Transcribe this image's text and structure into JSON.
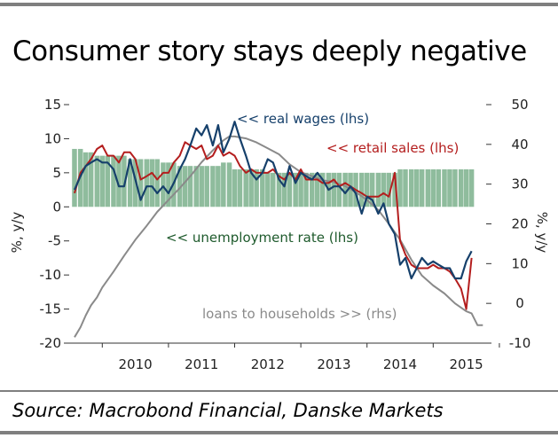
{
  "title": "Consumer story stays deeply negative",
  "source": "Source: Macrobond Financial, Danske Markets",
  "colors": {
    "real_wages": "#16406b",
    "retail_sales": "#b41e1e",
    "unemployment": "#8fbc9d",
    "unemployment_label": "#1e5a2c",
    "loans": "#8a8a8a",
    "rule": "#7f7f7f"
  },
  "chart_data": {
    "type": "line",
    "title": "Consumer story stays deeply negative",
    "left_axis": {
      "label": "%, y/y",
      "ylim": [
        -20,
        15
      ],
      "ticks": [
        15,
        10,
        5,
        0,
        -5,
        -10,
        -15,
        -20
      ],
      "tick_labels": [
        "15",
        "10",
        "5",
        "0",
        "-5",
        "-10",
        "-15",
        "-20"
      ]
    },
    "right_axis": {
      "label": "%, y/y",
      "ylim": [
        -10,
        50
      ],
      "ticks": [
        50,
        40,
        30,
        20,
        10,
        0,
        -10
      ],
      "tick_labels": [
        "50",
        "40",
        "30",
        "20",
        "10",
        "0",
        "-10"
      ]
    },
    "x_axis": {
      "range": [
        2009.5,
        2015.8
      ],
      "tick_labels": [
        "2010",
        "2011",
        "2012",
        "2013",
        "2014",
        "2015"
      ]
    },
    "grid": false,
    "series": [
      {
        "name": "<< real wages (lhs)",
        "axis": "left",
        "kind": "line",
        "points": [
          [
            2009.58,
            2.5
          ],
          [
            2009.67,
            4.5
          ],
          [
            2009.75,
            6.0
          ],
          [
            2009.83,
            6.5
          ],
          [
            2009.92,
            7.0
          ],
          [
            2010.0,
            6.5
          ],
          [
            2010.08,
            6.5
          ],
          [
            2010.17,
            5.5
          ],
          [
            2010.25,
            3.0
          ],
          [
            2010.33,
            3.0
          ],
          [
            2010.42,
            7.0
          ],
          [
            2010.5,
            4.0
          ],
          [
            2010.58,
            1.0
          ],
          [
            2010.67,
            3.0
          ],
          [
            2010.75,
            3.0
          ],
          [
            2010.83,
            2.0
          ],
          [
            2010.92,
            3.0
          ],
          [
            2011.0,
            2.0
          ],
          [
            2011.08,
            3.5
          ],
          [
            2011.17,
            5.5
          ],
          [
            2011.25,
            7.0
          ],
          [
            2011.33,
            9.0
          ],
          [
            2011.42,
            11.5
          ],
          [
            2011.5,
            10.5
          ],
          [
            2011.58,
            12.0
          ],
          [
            2011.67,
            9.0
          ],
          [
            2011.75,
            12.0
          ],
          [
            2011.83,
            8.0
          ],
          [
            2011.92,
            10.0
          ],
          [
            2012.0,
            12.5
          ],
          [
            2012.08,
            10.0
          ],
          [
            2012.17,
            7.5
          ],
          [
            2012.25,
            5.0
          ],
          [
            2012.33,
            4.0
          ],
          [
            2012.42,
            5.0
          ],
          [
            2012.5,
            7.0
          ],
          [
            2012.58,
            6.5
          ],
          [
            2012.67,
            4.0
          ],
          [
            2012.75,
            3.0
          ],
          [
            2012.83,
            6.0
          ],
          [
            2012.92,
            3.5
          ],
          [
            2013.0,
            5.0
          ],
          [
            2013.08,
            4.5
          ],
          [
            2013.17,
            4.0
          ],
          [
            2013.25,
            5.0
          ],
          [
            2013.33,
            4.0
          ],
          [
            2013.42,
            2.5
          ],
          [
            2013.5,
            3.0
          ],
          [
            2013.58,
            3.0
          ],
          [
            2013.67,
            2.0
          ],
          [
            2013.75,
            3.0
          ],
          [
            2013.83,
            2.0
          ],
          [
            2013.92,
            -1.0
          ],
          [
            2014.0,
            1.5
          ],
          [
            2014.08,
            1.0
          ],
          [
            2014.17,
            -1.0
          ],
          [
            2014.25,
            0.5
          ],
          [
            2014.33,
            -2.5
          ],
          [
            2014.42,
            -4.0
          ],
          [
            2014.5,
            -8.5
          ],
          [
            2014.58,
            -7.5
          ],
          [
            2014.67,
            -10.5
          ],
          [
            2014.75,
            -9.0
          ],
          [
            2014.83,
            -7.5
          ],
          [
            2014.92,
            -8.5
          ],
          [
            2015.0,
            -8.0
          ],
          [
            2015.08,
            -8.5
          ],
          [
            2015.17,
            -9.0
          ],
          [
            2015.25,
            -9.0
          ],
          [
            2015.33,
            -10.5
          ],
          [
            2015.42,
            -10.5
          ],
          [
            2015.5,
            -8.0
          ],
          [
            2015.58,
            -6.5
          ]
        ]
      },
      {
        "name": "<< retail sales (lhs)",
        "axis": "left",
        "kind": "line",
        "points": [
          [
            2009.58,
            2.0
          ],
          [
            2009.67,
            5.0
          ],
          [
            2009.75,
            6.0
          ],
          [
            2009.83,
            7.0
          ],
          [
            2009.92,
            8.5
          ],
          [
            2010.0,
            9.0
          ],
          [
            2010.08,
            7.5
          ],
          [
            2010.17,
            7.5
          ],
          [
            2010.25,
            6.5
          ],
          [
            2010.33,
            8.0
          ],
          [
            2010.42,
            8.0
          ],
          [
            2010.5,
            7.0
          ],
          [
            2010.58,
            4.0
          ],
          [
            2010.67,
            4.5
          ],
          [
            2010.75,
            5.0
          ],
          [
            2010.83,
            4.0
          ],
          [
            2010.92,
            5.0
          ],
          [
            2011.0,
            5.0
          ],
          [
            2011.08,
            6.5
          ],
          [
            2011.17,
            7.5
          ],
          [
            2011.25,
            9.5
          ],
          [
            2011.33,
            9.0
          ],
          [
            2011.42,
            8.5
          ],
          [
            2011.5,
            9.0
          ],
          [
            2011.58,
            7.0
          ],
          [
            2011.67,
            7.5
          ],
          [
            2011.75,
            9.0
          ],
          [
            2011.83,
            7.5
          ],
          [
            2011.92,
            8.0
          ],
          [
            2012.0,
            7.5
          ],
          [
            2012.08,
            6.0
          ],
          [
            2012.17,
            5.0
          ],
          [
            2012.25,
            5.5
          ],
          [
            2012.33,
            5.0
          ],
          [
            2012.42,
            5.0
          ],
          [
            2012.5,
            5.0
          ],
          [
            2012.58,
            5.5
          ],
          [
            2012.67,
            4.5
          ],
          [
            2012.75,
            4.0
          ],
          [
            2012.83,
            5.0
          ],
          [
            2012.92,
            4.0
          ],
          [
            2013.0,
            5.5
          ],
          [
            2013.08,
            4.0
          ],
          [
            2013.17,
            4.0
          ],
          [
            2013.25,
            4.0
          ],
          [
            2013.33,
            3.5
          ],
          [
            2013.42,
            3.5
          ],
          [
            2013.5,
            4.0
          ],
          [
            2013.58,
            3.0
          ],
          [
            2013.67,
            3.5
          ],
          [
            2013.75,
            3.0
          ],
          [
            2013.83,
            2.5
          ],
          [
            2013.92,
            2.0
          ],
          [
            2014.0,
            1.5
          ],
          [
            2014.08,
            1.5
          ],
          [
            2014.17,
            1.5
          ],
          [
            2014.25,
            2.0
          ],
          [
            2014.33,
            1.5
          ],
          [
            2014.42,
            5.0
          ],
          [
            2014.5,
            -5.0
          ],
          [
            2014.58,
            -7.0
          ],
          [
            2014.67,
            -8.5
          ],
          [
            2014.75,
            -9.0
          ],
          [
            2014.83,
            -9.0
          ],
          [
            2014.92,
            -9.0
          ],
          [
            2015.0,
            -8.5
          ],
          [
            2015.08,
            -9.0
          ],
          [
            2015.17,
            -9.0
          ],
          [
            2015.25,
            -9.5
          ],
          [
            2015.33,
            -10.5
          ],
          [
            2015.42,
            -12.0
          ],
          [
            2015.5,
            -15.0
          ],
          [
            2015.58,
            -7.5
          ]
        ]
      },
      {
        "name": "<< unemployment rate (lhs)",
        "axis": "left",
        "kind": "bar",
        "points": [
          [
            2009.58,
            8.5
          ],
          [
            2009.67,
            8.5
          ],
          [
            2009.75,
            8.0
          ],
          [
            2009.83,
            8.0
          ],
          [
            2009.92,
            7.5
          ],
          [
            2010.0,
            7.5
          ],
          [
            2010.08,
            7.5
          ],
          [
            2010.17,
            7.5
          ],
          [
            2010.25,
            7.5
          ],
          [
            2010.33,
            7.5
          ],
          [
            2010.42,
            7.0
          ],
          [
            2010.5,
            7.0
          ],
          [
            2010.58,
            7.0
          ],
          [
            2010.67,
            7.0
          ],
          [
            2010.75,
            7.0
          ],
          [
            2010.83,
            7.0
          ],
          [
            2010.92,
            6.5
          ],
          [
            2011.0,
            6.5
          ],
          [
            2011.08,
            6.5
          ],
          [
            2011.17,
            6.0
          ],
          [
            2011.25,
            6.0
          ],
          [
            2011.33,
            6.0
          ],
          [
            2011.42,
            6.0
          ],
          [
            2011.5,
            6.0
          ],
          [
            2011.58,
            6.0
          ],
          [
            2011.67,
            6.0
          ],
          [
            2011.75,
            6.0
          ],
          [
            2011.83,
            6.5
          ],
          [
            2011.92,
            6.5
          ],
          [
            2012.0,
            5.5
          ],
          [
            2012.08,
            5.5
          ],
          [
            2012.17,
            5.5
          ],
          [
            2012.25,
            5.5
          ],
          [
            2012.33,
            5.5
          ],
          [
            2012.42,
            5.5
          ],
          [
            2012.5,
            5.0
          ],
          [
            2012.58,
            5.0
          ],
          [
            2012.67,
            5.0
          ],
          [
            2012.75,
            5.0
          ],
          [
            2012.83,
            5.0
          ],
          [
            2012.92,
            5.0
          ],
          [
            2013.0,
            5.0
          ],
          [
            2013.08,
            5.0
          ],
          [
            2013.17,
            5.0
          ],
          [
            2013.25,
            5.0
          ],
          [
            2013.33,
            5.0
          ],
          [
            2013.42,
            5.0
          ],
          [
            2013.5,
            5.0
          ],
          [
            2013.58,
            5.0
          ],
          [
            2013.67,
            5.0
          ],
          [
            2013.75,
            5.0
          ],
          [
            2013.83,
            5.0
          ],
          [
            2013.92,
            5.0
          ],
          [
            2014.0,
            5.0
          ],
          [
            2014.08,
            5.0
          ],
          [
            2014.17,
            5.0
          ],
          [
            2014.25,
            5.0
          ],
          [
            2014.33,
            5.0
          ],
          [
            2014.42,
            5.0
          ],
          [
            2014.5,
            5.5
          ],
          [
            2014.58,
            5.5
          ],
          [
            2014.67,
            5.5
          ],
          [
            2014.75,
            5.5
          ],
          [
            2014.83,
            5.5
          ],
          [
            2014.92,
            5.5
          ],
          [
            2015.0,
            5.5
          ],
          [
            2015.08,
            5.5
          ],
          [
            2015.17,
            5.5
          ],
          [
            2015.25,
            5.5
          ],
          [
            2015.33,
            5.5
          ],
          [
            2015.42,
            5.5
          ],
          [
            2015.5,
            5.5
          ],
          [
            2015.58,
            5.5
          ]
        ]
      },
      {
        "name": "loans to households >> (rhs)",
        "axis": "right",
        "kind": "line",
        "points": [
          [
            2009.58,
            -8.5
          ],
          [
            2009.67,
            -6.0
          ],
          [
            2009.75,
            -3.0
          ],
          [
            2009.83,
            -0.5
          ],
          [
            2009.92,
            1.5
          ],
          [
            2010.0,
            4.0
          ],
          [
            2010.17,
            8.0
          ],
          [
            2010.33,
            12.0
          ],
          [
            2010.5,
            16.0
          ],
          [
            2010.67,
            19.5
          ],
          [
            2010.83,
            23.0
          ],
          [
            2011.0,
            26.0
          ],
          [
            2011.17,
            29.0
          ],
          [
            2011.33,
            32.0
          ],
          [
            2011.5,
            35.5
          ],
          [
            2011.67,
            38.5
          ],
          [
            2011.83,
            41.0
          ],
          [
            2011.92,
            42.0
          ],
          [
            2012.0,
            42.0
          ],
          [
            2012.17,
            41.5
          ],
          [
            2012.33,
            40.5
          ],
          [
            2012.5,
            39.0
          ],
          [
            2012.67,
            37.5
          ],
          [
            2012.83,
            35.0
          ],
          [
            2013.0,
            33.0
          ],
          [
            2013.17,
            32.0
          ],
          [
            2013.33,
            31.0
          ],
          [
            2013.5,
            30.5
          ],
          [
            2013.67,
            29.5
          ],
          [
            2013.83,
            28.0
          ],
          [
            2014.0,
            26.0
          ],
          [
            2014.17,
            23.5
          ],
          [
            2014.33,
            20.0
          ],
          [
            2014.5,
            16.0
          ],
          [
            2014.67,
            11.0
          ],
          [
            2014.83,
            7.0
          ],
          [
            2015.0,
            4.5
          ],
          [
            2015.17,
            2.5
          ],
          [
            2015.33,
            0.0
          ],
          [
            2015.5,
            -2.0
          ],
          [
            2015.58,
            -2.5
          ],
          [
            2015.67,
            -5.5
          ],
          [
            2015.75,
            -5.5
          ]
        ]
      }
    ],
    "annotations": [
      {
        "text": "<< real wages (lhs)",
        "color": "#16406b"
      },
      {
        "text": "<< retail sales (lhs)",
        "color": "#b41e1e"
      },
      {
        "text": "<< unemployment rate (lhs)",
        "color": "#1e5a2c"
      },
      {
        "text": "loans to households >> (rhs)",
        "color": "#8a8a8a"
      }
    ]
  }
}
